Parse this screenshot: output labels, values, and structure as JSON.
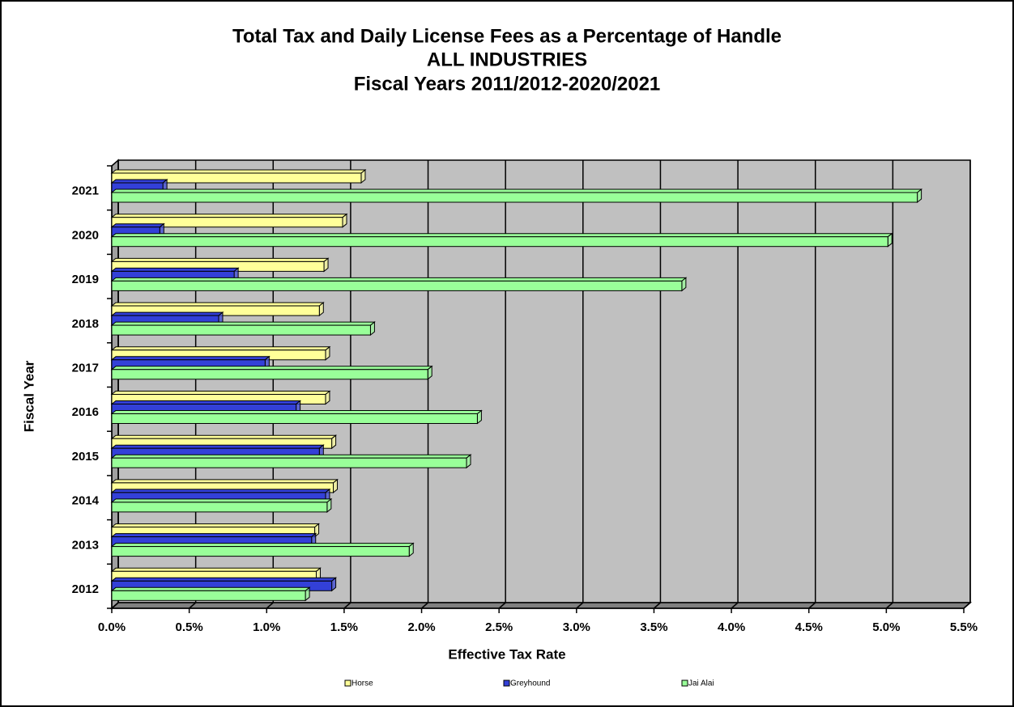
{
  "chart_data": {
    "type": "bar3d_horizontal",
    "title": "Total Tax and Daily License Fees as a Percentage of Handle",
    "subtitle": [
      "ALL INDUSTRIES",
      "Fiscal Years 2011/2012-2020/2021"
    ],
    "xlabel": "Effective Tax Rate",
    "ylabel": "Fiscal Year",
    "categories": [
      "2012",
      "2013",
      "2014",
      "2015",
      "2016",
      "2017",
      "2018",
      "2019",
      "2020",
      "2021"
    ],
    "series": [
      {
        "name": "Horse",
        "color": "#ffff99",
        "values": [
          1.32,
          1.31,
          1.43,
          1.42,
          1.38,
          1.38,
          1.34,
          1.37,
          1.49,
          1.61
        ]
      },
      {
        "name": "Greyhound",
        "color": "#3340d8",
        "values": [
          1.42,
          1.29,
          1.38,
          1.34,
          1.19,
          0.99,
          0.69,
          0.79,
          0.31,
          0.33
        ]
      },
      {
        "name": "Jai Alai",
        "color": "#99ff99",
        "values": [
          1.25,
          1.92,
          1.39,
          2.29,
          2.36,
          2.04,
          1.67,
          3.68,
          5.01,
          5.2
        ]
      }
    ],
    "xlim": [
      0,
      5.5
    ],
    "xticks": [
      {
        "value": 0,
        "label": "0.0%"
      },
      {
        "value": 0.5,
        "label": "0.5%"
      },
      {
        "value": 1,
        "label": "1.0%"
      },
      {
        "value": 1.5,
        "label": "1.5%"
      },
      {
        "value": 2,
        "label": "2.0%"
      },
      {
        "value": 2.5,
        "label": "2.5%"
      },
      {
        "value": 3,
        "label": "3.0%"
      },
      {
        "value": 3.5,
        "label": "3.5%"
      },
      {
        "value": 4,
        "label": "4.0%"
      },
      {
        "value": 4.5,
        "label": "4.5%"
      },
      {
        "value": 5,
        "label": "5.0%"
      },
      {
        "value": 5.5,
        "label": "5.5%"
      }
    ],
    "grid": true,
    "legend": "bottom"
  }
}
